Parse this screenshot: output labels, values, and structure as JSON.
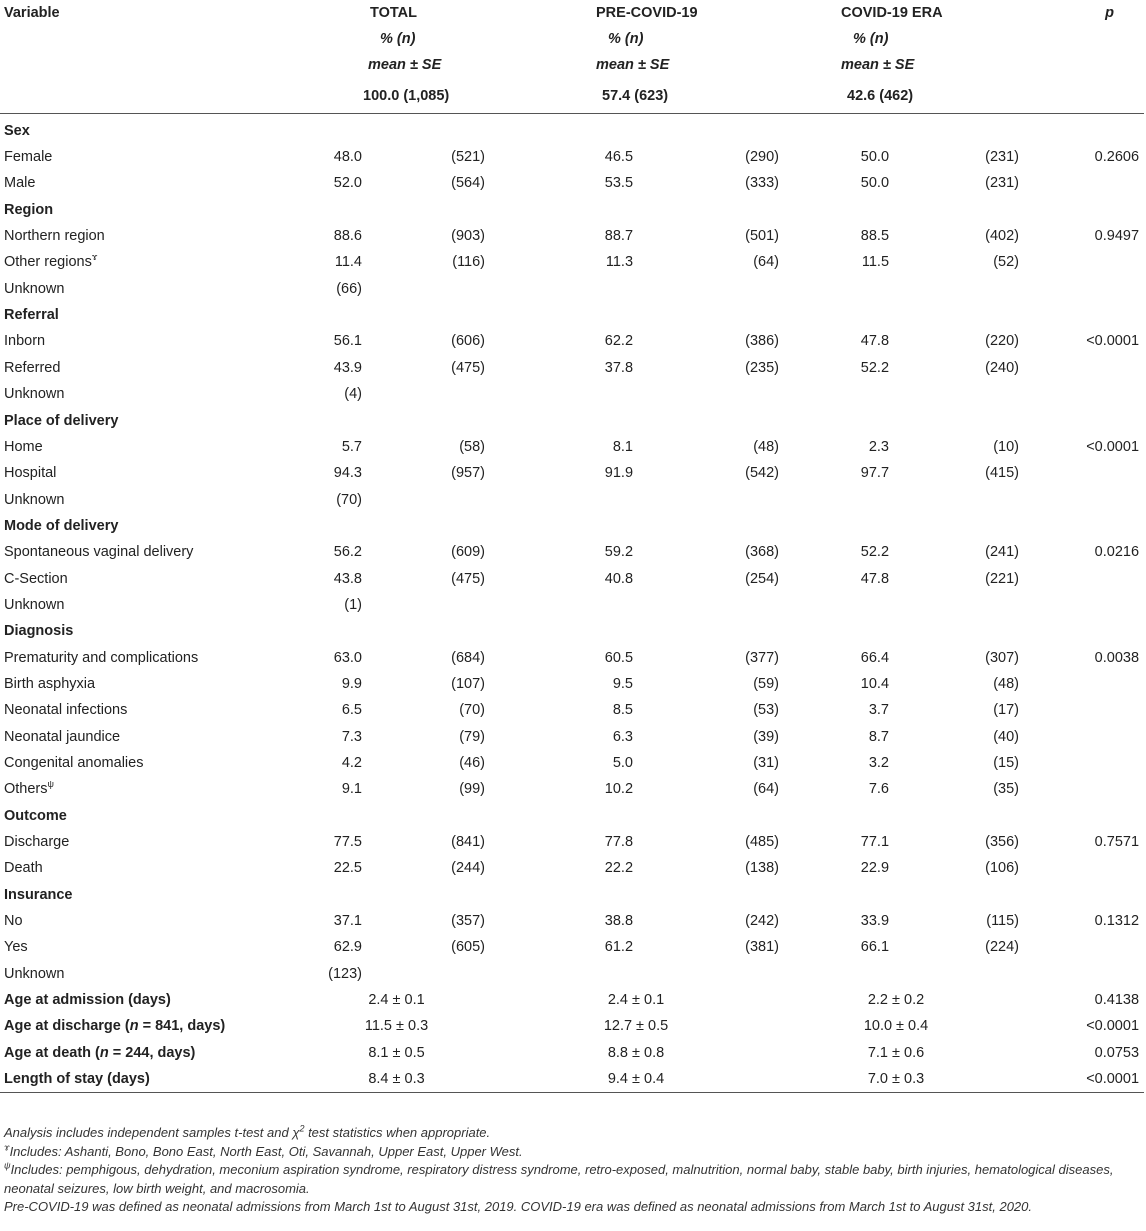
{
  "header": {
    "variable": "Variable",
    "total": {
      "title": "TOTAL",
      "pct": "% (n)",
      "mean": "mean ± SE",
      "summary": "100.0 (1,085)"
    },
    "pre": {
      "title": "PRE-COVID-19",
      "pct": "% (n)",
      "mean": "mean ± SE",
      "summary": "57.4 (623)"
    },
    "covid": {
      "title": "COVID-19 ERA",
      "pct": "% (n)",
      "mean": "mean ± SE",
      "summary": "42.6 (462)"
    },
    "p": "p"
  },
  "rows": [
    {
      "type": "group",
      "label": "Sex"
    },
    {
      "type": "data",
      "label": "Female",
      "t_pct": "48.0",
      "t_n": "(521)",
      "pre_pct": "46.5",
      "pre_n": "(290)",
      "c_pct": "50.0",
      "c_n": "(231)",
      "p": "0.2606"
    },
    {
      "type": "data",
      "label": "Male",
      "t_pct": "52.0",
      "t_n": "(564)",
      "pre_pct": "53.5",
      "pre_n": "(333)",
      "c_pct": "50.0",
      "c_n": "(231)",
      "p": ""
    },
    {
      "type": "group",
      "label": "Region"
    },
    {
      "type": "data",
      "label": "Northern region",
      "t_pct": "88.6",
      "t_n": "(903)",
      "pre_pct": "88.7",
      "pre_n": "(501)",
      "c_pct": "88.5",
      "c_n": "(402)",
      "p": "0.9497"
    },
    {
      "type": "data",
      "label": "Other regions",
      "sup": "ɤ",
      "t_pct": "11.4",
      "t_n": "(116)",
      "pre_pct": "11.3",
      "pre_n": "(64)",
      "c_pct": "11.5",
      "c_n": "(52)",
      "p": ""
    },
    {
      "type": "data",
      "label": "Unknown",
      "t_pct": "(66)",
      "t_n": "",
      "pre_pct": "",
      "pre_n": "",
      "c_pct": "",
      "c_n": "",
      "p": ""
    },
    {
      "type": "group",
      "label": "Referral"
    },
    {
      "type": "data",
      "label": "Inborn",
      "t_pct": "56.1",
      "t_n": "(606)",
      "pre_pct": "62.2",
      "pre_n": "(386)",
      "c_pct": "47.8",
      "c_n": "(220)",
      "p": "<0.0001"
    },
    {
      "type": "data",
      "label": "Referred",
      "t_pct": "43.9",
      "t_n": "(475)",
      "pre_pct": "37.8",
      "pre_n": "(235)",
      "c_pct": "52.2",
      "c_n": "(240)",
      "p": ""
    },
    {
      "type": "data",
      "label": "Unknown",
      "t_pct": "(4)",
      "t_n": "",
      "pre_pct": "",
      "pre_n": "",
      "c_pct": "",
      "c_n": "",
      "p": ""
    },
    {
      "type": "group",
      "label": "Place of delivery"
    },
    {
      "type": "data",
      "label": "Home",
      "t_pct": "5.7",
      "t_n": "(58)",
      "pre_pct": "8.1",
      "pre_n": "(48)",
      "c_pct": "2.3",
      "c_n": "(10)",
      "p": "<0.0001"
    },
    {
      "type": "data",
      "label": "Hospital",
      "t_pct": "94.3",
      "t_n": "(957)",
      "pre_pct": "91.9",
      "pre_n": "(542)",
      "c_pct": "97.7",
      "c_n": "(415)",
      "p": ""
    },
    {
      "type": "data",
      "label": "Unknown",
      "t_pct": "(70)",
      "t_n": "",
      "pre_pct": "",
      "pre_n": "",
      "c_pct": "",
      "c_n": "",
      "p": ""
    },
    {
      "type": "group",
      "label": "Mode of delivery"
    },
    {
      "type": "data",
      "label": "Spontaneous vaginal delivery",
      "t_pct": "56.2",
      "t_n": "(609)",
      "pre_pct": "59.2",
      "pre_n": "(368)",
      "c_pct": "52.2",
      "c_n": "(241)",
      "p": "0.0216"
    },
    {
      "type": "data",
      "label": "C-Section",
      "t_pct": "43.8",
      "t_n": "(475)",
      "pre_pct": "40.8",
      "pre_n": "(254)",
      "c_pct": "47.8",
      "c_n": "(221)",
      "p": ""
    },
    {
      "type": "data",
      "label": "Unknown",
      "t_pct": "(1)",
      "t_n": "",
      "pre_pct": "",
      "pre_n": "",
      "c_pct": "",
      "c_n": "",
      "p": ""
    },
    {
      "type": "group",
      "label": "Diagnosis"
    },
    {
      "type": "data",
      "label": "Prematurity and complications",
      "t_pct": "63.0",
      "t_n": "(684)",
      "pre_pct": "60.5",
      "pre_n": "(377)",
      "c_pct": "66.4",
      "c_n": "(307)",
      "p": "0.0038"
    },
    {
      "type": "data",
      "label": "Birth asphyxia",
      "t_pct": "9.9",
      "t_n": "(107)",
      "pre_pct": "9.5",
      "pre_n": "(59)",
      "c_pct": "10.4",
      "c_n": "(48)",
      "p": ""
    },
    {
      "type": "data",
      "label": "Neonatal infections",
      "t_pct": "6.5",
      "t_n": "(70)",
      "pre_pct": "8.5",
      "pre_n": "(53)",
      "c_pct": "3.7",
      "c_n": "(17)",
      "p": ""
    },
    {
      "type": "data",
      "label": "Neonatal jaundice",
      "t_pct": "7.3",
      "t_n": "(79)",
      "pre_pct": "6.3",
      "pre_n": "(39)",
      "c_pct": "8.7",
      "c_n": "(40)",
      "p": ""
    },
    {
      "type": "data",
      "label": "Congenital anomalies",
      "t_pct": "4.2",
      "t_n": "(46)",
      "pre_pct": "5.0",
      "pre_n": "(31)",
      "c_pct": "3.2",
      "c_n": "(15)",
      "p": ""
    },
    {
      "type": "data",
      "label": "Others",
      "sup": "ψ",
      "t_pct": "9.1",
      "t_n": "(99)",
      "pre_pct": "10.2",
      "pre_n": "(64)",
      "c_pct": "7.6",
      "c_n": "(35)",
      "p": ""
    },
    {
      "type": "group",
      "label": "Outcome"
    },
    {
      "type": "data",
      "label": "Discharge",
      "t_pct": "77.5",
      "t_n": "(841)",
      "pre_pct": "77.8",
      "pre_n": "(485)",
      "c_pct": "77.1",
      "c_n": "(356)",
      "p": "0.7571"
    },
    {
      "type": "data",
      "label": "Death",
      "t_pct": "22.5",
      "t_n": "(244)",
      "pre_pct": "22.2",
      "pre_n": "(138)",
      "c_pct": "22.9",
      "c_n": "(106)",
      "p": ""
    },
    {
      "type": "group",
      "label": "Insurance"
    },
    {
      "type": "data",
      "label": "No",
      "t_pct": "37.1",
      "t_n": "(357)",
      "pre_pct": "38.8",
      "pre_n": "(242)",
      "c_pct": "33.9",
      "c_n": "(115)",
      "p": "0.1312"
    },
    {
      "type": "data",
      "label": "Yes",
      "t_pct": "62.9",
      "t_n": "(605)",
      "pre_pct": "61.2",
      "pre_n": "(381)",
      "c_pct": "66.1",
      "c_n": "(224)",
      "p": ""
    },
    {
      "type": "data",
      "label": "Unknown",
      "t_pct": "(123)",
      "t_n": "",
      "pre_pct": "",
      "pre_n": "",
      "c_pct": "",
      "c_n": "",
      "p": ""
    },
    {
      "type": "mean",
      "label": "Age at admission (days)",
      "total": "2.4 ± 0.1",
      "pre": "2.4 ± 0.1",
      "covid": "2.2 ± 0.2",
      "p": "0.4138"
    },
    {
      "type": "mean",
      "label_pre": "Age at discharge (",
      "label_var": "n",
      "label_post": " = 841, days)",
      "total": "11.5 ± 0.3",
      "pre": "12.7 ± 0.5",
      "covid": "10.0 ± 0.4",
      "p": "<0.0001"
    },
    {
      "type": "mean",
      "label_pre": "Age at death (",
      "label_var": "n",
      "label_post": " = 244, days)",
      "total": "8.1 ± 0.5",
      "pre": "8.8 ± 0.8",
      "covid": "7.1 ± 0.6",
      "p": "0.0753"
    },
    {
      "type": "mean",
      "label": "Length of stay (days)",
      "total": "8.4 ± 0.3",
      "pre": "9.4 ± 0.4",
      "covid": "7.0 ± 0.3",
      "p": "<0.0001"
    }
  ],
  "notes": {
    "analysis_pre": "Analysis includes independent samples t-test and χ",
    "analysis_sup": "2",
    "analysis_post": " test statistics when appropriate.",
    "regions_sup": "ɤ",
    "regions": "Includes: Ashanti, Bono, Bono East, North East, Oti, Savannah, Upper East, Upper West.",
    "others_sup": "ψ",
    "others": "Includes: pemphigous, dehydration, meconium aspiration syndrome, respiratory distress syndrome, retro-exposed, malnutrition, normal baby, stable baby, birth injuries, hematological diseases, neonatal seizures, low birth weight, and macrosomia.",
    "period": "Pre-COVID-19 was defined as neonatal admissions from March 1st to August 31st, 2019. COVID-19 era was defined as neonatal admissions from March 1st to August 31st, 2020."
  }
}
